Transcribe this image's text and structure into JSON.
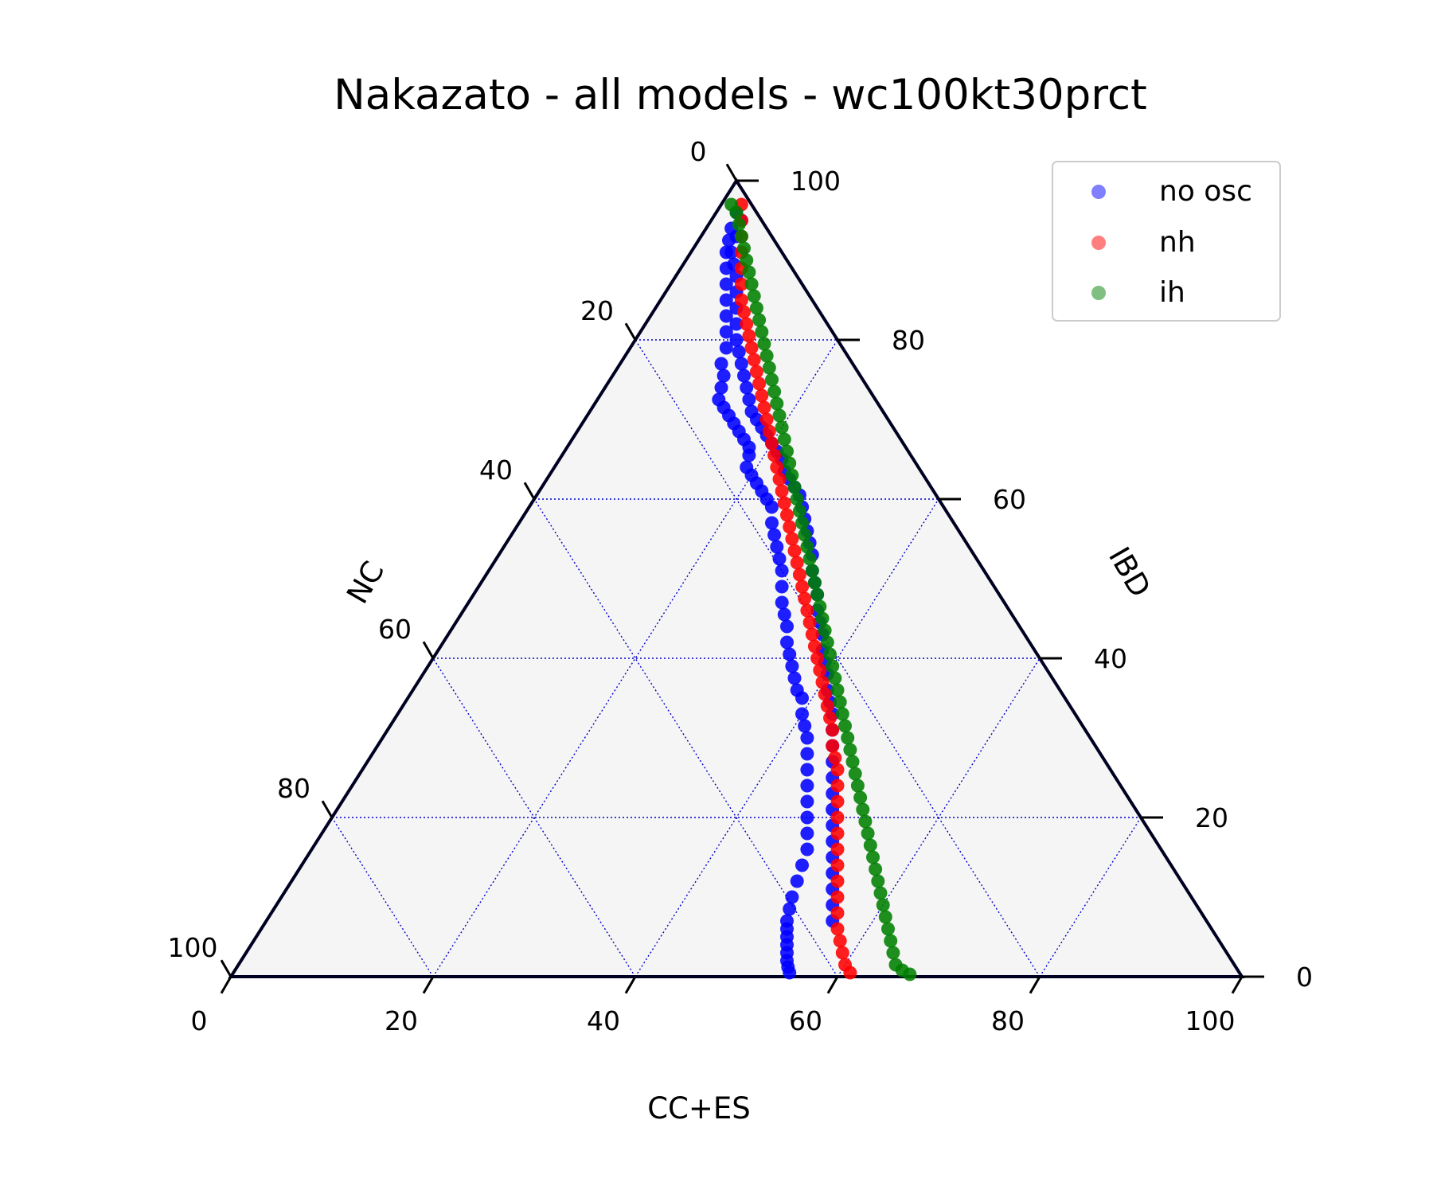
{
  "chart_data": {
    "type": "scatter",
    "subtype": "ternary",
    "title": "Nakazato - all models - wc100kt30prct",
    "axes": {
      "bottom": {
        "label": "CC+ES",
        "range": [
          0,
          100
        ],
        "ticks": [
          "0",
          "20",
          "40",
          "60",
          "80",
          "100"
        ]
      },
      "left": {
        "label": "NC",
        "range": [
          0,
          100
        ],
        "ticks": [
          "0",
          "20",
          "40",
          "60",
          "80",
          "100"
        ]
      },
      "right": {
        "label": "IBD",
        "range": [
          0,
          100
        ],
        "ticks": [
          "0",
          "20",
          "40",
          "60",
          "80",
          "100"
        ]
      }
    },
    "grid": true,
    "legend": {
      "position": "top-right"
    },
    "series": [
      {
        "name": "no osc",
        "color": "#0000ff",
        "points": [
          [
            2,
            96
          ],
          [
            2.5,
            94
          ],
          [
            3,
            92.5
          ],
          [
            3.5,
            91
          ],
          [
            4.5,
            89
          ],
          [
            5.5,
            87
          ],
          [
            6.5,
            85
          ],
          [
            7.5,
            83
          ],
          [
            8.5,
            81
          ],
          [
            9.5,
            79
          ],
          [
            10,
            77
          ],
          [
            11,
            75.5
          ],
          [
            11.5,
            74
          ],
          [
            12,
            72.5
          ],
          [
            13,
            71.5
          ],
          [
            14,
            70.5
          ],
          [
            15,
            69.5
          ],
          [
            16,
            68.5
          ],
          [
            17,
            67.5
          ],
          [
            18,
            66.5
          ],
          [
            18.5,
            65.5
          ],
          [
            19,
            64
          ],
          [
            20,
            63
          ],
          [
            21,
            62
          ],
          [
            22,
            61
          ],
          [
            23,
            60
          ],
          [
            24,
            59
          ],
          [
            25,
            57
          ],
          [
            26,
            55.5
          ],
          [
            27,
            54
          ],
          [
            28,
            52.5
          ],
          [
            29,
            51
          ],
          [
            30,
            49
          ],
          [
            31,
            47
          ],
          [
            32,
            45.5
          ],
          [
            33,
            44
          ],
          [
            34,
            42
          ],
          [
            35,
            40.5
          ],
          [
            36,
            39
          ],
          [
            37,
            37.5
          ],
          [
            38,
            36
          ],
          [
            39,
            35
          ],
          [
            40,
            33
          ],
          [
            41,
            31.5
          ],
          [
            42,
            30
          ],
          [
            43,
            28
          ],
          [
            44,
            26
          ],
          [
            45,
            24
          ],
          [
            46,
            22
          ],
          [
            47,
            20
          ],
          [
            48,
            18
          ],
          [
            49,
            16
          ],
          [
            49.5,
            14
          ],
          [
            50,
            12
          ],
          [
            50.5,
            10
          ],
          [
            51,
            8.5
          ],
          [
            51.5,
            7
          ],
          [
            52,
            6
          ],
          [
            52.5,
            5
          ],
          [
            53,
            4
          ],
          [
            53.5,
            3
          ],
          [
            54,
            2
          ],
          [
            54.5,
            1.2
          ],
          [
            55,
            0.5
          ],
          [
            3,
            95
          ],
          [
            3.5,
            93
          ],
          [
            4,
            91
          ],
          [
            5,
            89.5
          ],
          [
            6,
            88
          ],
          [
            7,
            86
          ],
          [
            8,
            84
          ],
          [
            9,
            82
          ],
          [
            10,
            80
          ],
          [
            11,
            78.5
          ],
          [
            12,
            77
          ],
          [
            13,
            75.5
          ],
          [
            14,
            74
          ],
          [
            15,
            72.5
          ],
          [
            16,
            71
          ],
          [
            17,
            70
          ],
          [
            18,
            69
          ],
          [
            19,
            68
          ],
          [
            20,
            67
          ],
          [
            21,
            66
          ],
          [
            22,
            65
          ],
          [
            23,
            63.5
          ],
          [
            24,
            62.5
          ],
          [
            25,
            61.5
          ],
          [
            26,
            60.5
          ],
          [
            27,
            59
          ],
          [
            28,
            57.5
          ],
          [
            29,
            56
          ],
          [
            30,
            54.5
          ],
          [
            31,
            53
          ],
          [
            32,
            51
          ],
          [
            33,
            49.5
          ],
          [
            34,
            48
          ],
          [
            35,
            46
          ],
          [
            36,
            44.5
          ],
          [
            37,
            43
          ],
          [
            38,
            41
          ],
          [
            39,
            39.5
          ],
          [
            40,
            38
          ],
          [
            41,
            36
          ],
          [
            42,
            34.5
          ],
          [
            43,
            33
          ],
          [
            44,
            31
          ],
          [
            45,
            29
          ],
          [
            46,
            27
          ],
          [
            47,
            25
          ],
          [
            48,
            23
          ],
          [
            49,
            21
          ],
          [
            50,
            19
          ],
          [
            51,
            17
          ],
          [
            52,
            15
          ],
          [
            53,
            13
          ],
          [
            54,
            11
          ],
          [
            55,
            9
          ],
          [
            56,
            7
          ]
        ]
      },
      {
        "name": "nh",
        "color": "#ff0000",
        "points": [
          [
            2,
            97
          ],
          [
            3,
            95
          ],
          [
            4,
            93
          ],
          [
            5,
            91
          ],
          [
            6,
            89
          ],
          [
            7,
            87
          ],
          [
            8,
            85
          ],
          [
            9,
            83.5
          ],
          [
            10,
            82
          ],
          [
            11,
            80.5
          ],
          [
            12,
            79
          ],
          [
            13,
            77.5
          ],
          [
            14,
            76
          ],
          [
            15,
            74.5
          ],
          [
            16,
            73
          ],
          [
            17,
            71.5
          ],
          [
            18,
            70
          ],
          [
            19,
            68.5
          ],
          [
            20,
            67
          ],
          [
            21,
            65.5
          ],
          [
            22,
            64
          ],
          [
            23,
            62.5
          ],
          [
            24,
            61
          ],
          [
            25,
            59.5
          ],
          [
            26,
            58
          ],
          [
            27,
            56.5
          ],
          [
            28,
            55
          ],
          [
            29,
            53.5
          ],
          [
            30,
            52
          ],
          [
            31,
            50.5
          ],
          [
            32,
            49
          ],
          [
            33,
            47.5
          ],
          [
            34,
            46
          ],
          [
            35,
            44.5
          ],
          [
            36,
            43
          ],
          [
            37,
            41.5
          ],
          [
            38,
            40
          ],
          [
            39,
            38.5
          ],
          [
            40,
            37
          ],
          [
            41,
            35.5
          ],
          [
            42,
            34
          ],
          [
            43,
            32.5
          ],
          [
            44,
            31
          ],
          [
            45,
            29
          ],
          [
            46,
            27.5
          ],
          [
            47,
            26
          ],
          [
            48,
            24
          ],
          [
            49,
            22
          ],
          [
            50,
            20
          ],
          [
            51,
            18
          ],
          [
            52,
            16
          ],
          [
            53,
            14
          ],
          [
            54,
            12
          ],
          [
            55,
            10
          ],
          [
            56,
            8
          ],
          [
            57,
            6
          ],
          [
            58,
            4.5
          ],
          [
            59,
            3
          ],
          [
            60,
            1.5
          ],
          [
            61,
            0.5
          ]
        ]
      },
      {
        "name": "ih",
        "color": "#008000",
        "points": [
          [
            1,
            97
          ],
          [
            2,
            96
          ],
          [
            3,
            94.5
          ],
          [
            4,
            93
          ],
          [
            5,
            91.5
          ],
          [
            6,
            90
          ],
          [
            7,
            88.5
          ],
          [
            8,
            87
          ],
          [
            9,
            85.5
          ],
          [
            10,
            84
          ],
          [
            11,
            82.5
          ],
          [
            12,
            81
          ],
          [
            13,
            79.5
          ],
          [
            14,
            78
          ],
          [
            15,
            76.5
          ],
          [
            16,
            75
          ],
          [
            17,
            73.5
          ],
          [
            18,
            72
          ],
          [
            19,
            70.5
          ],
          [
            20,
            69
          ],
          [
            21,
            67.5
          ],
          [
            22,
            66
          ],
          [
            23,
            64.5
          ],
          [
            24,
            63
          ],
          [
            25,
            61.5
          ],
          [
            26,
            60
          ],
          [
            27,
            58.5
          ],
          [
            28,
            57
          ],
          [
            29,
            55.5
          ],
          [
            30,
            54
          ],
          [
            31,
            52.5
          ],
          [
            32,
            51
          ],
          [
            33,
            49.5
          ],
          [
            34,
            48
          ],
          [
            35,
            46.5
          ],
          [
            36,
            45
          ],
          [
            37,
            43.5
          ],
          [
            38,
            42
          ],
          [
            39,
            40.5
          ],
          [
            40,
            39
          ],
          [
            41,
            37.5
          ],
          [
            42,
            36
          ],
          [
            43,
            34.5
          ],
          [
            44,
            33
          ],
          [
            45,
            31.5
          ],
          [
            46,
            30
          ],
          [
            47,
            28.5
          ],
          [
            48,
            27
          ],
          [
            49,
            25.5
          ],
          [
            50,
            24
          ],
          [
            51,
            22.5
          ],
          [
            52,
            21
          ],
          [
            53,
            19.5
          ],
          [
            54,
            18
          ],
          [
            55,
            16.5
          ],
          [
            56,
            15
          ],
          [
            57,
            13.5
          ],
          [
            58,
            12
          ],
          [
            59,
            10.5
          ],
          [
            60,
            9
          ],
          [
            61,
            7.5
          ],
          [
            62,
            6
          ],
          [
            63,
            4.5
          ],
          [
            64,
            3
          ],
          [
            65,
            1.5
          ],
          [
            66,
            0.8
          ],
          [
            67,
            0.3
          ]
        ]
      }
    ]
  }
}
